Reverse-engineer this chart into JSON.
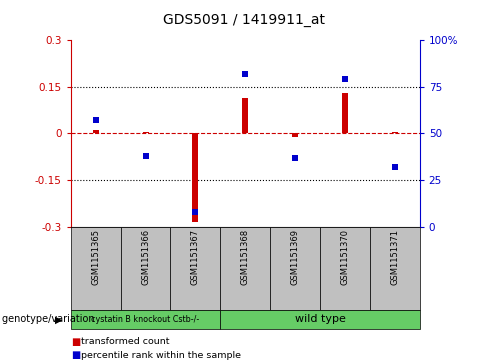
{
  "title": "GDS5091 / 1419911_at",
  "samples": [
    "GSM1151365",
    "GSM1151366",
    "GSM1151367",
    "GSM1151368",
    "GSM1151369",
    "GSM1151370",
    "GSM1151371"
  ],
  "transformed_count": [
    0.01,
    0.005,
    -0.285,
    0.115,
    -0.01,
    0.13,
    0.005
  ],
  "percentile_rank": [
    57,
    38,
    8,
    82,
    37,
    79,
    32
  ],
  "group1_label": "cystatin B knockout Cstb-/-",
  "group2_label": "wild type",
  "group1_indices": [
    0,
    1,
    2
  ],
  "group2_indices": [
    3,
    4,
    5,
    6
  ],
  "group_color": "#66cc66",
  "ylim_left": [
    -0.3,
    0.3
  ],
  "ylim_right": [
    0,
    100
  ],
  "yticks_left": [
    -0.3,
    -0.15,
    0.0,
    0.15,
    0.3
  ],
  "yticks_right": [
    0,
    25,
    50,
    75,
    100
  ],
  "ytick_labels_left": [
    "-0.3",
    "-0.15",
    "0",
    "0.15",
    "0.3"
  ],
  "ytick_labels_right": [
    "0",
    "25",
    "50",
    "75",
    "100%"
  ],
  "left_axis_color": "#cc0000",
  "right_axis_color": "#0000cc",
  "bar_color": "#cc0000",
  "scatter_color": "#0000cc",
  "zero_line_color": "#cc0000",
  "group_label": "genotype/variation",
  "legend_transformed": "transformed count",
  "legend_percentile": "percentile rank within the sample",
  "gray_color": "#c0c0c0",
  "bg_color": "#ffffff",
  "title_fontsize": 10,
  "tick_fontsize": 7.5,
  "label_fontsize": 7,
  "bar_width": 0.12
}
